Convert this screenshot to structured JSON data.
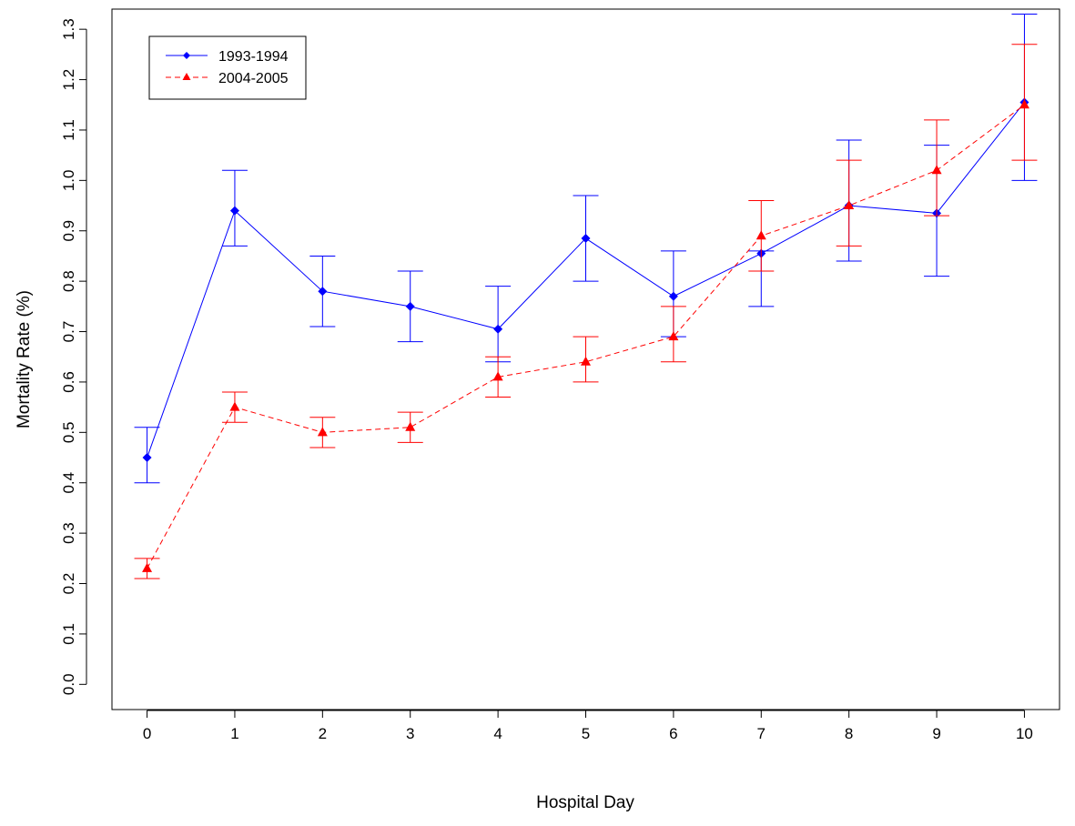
{
  "chart_data": {
    "type": "line",
    "title": "",
    "xlabel": "Hospital Day",
    "ylabel": "Mortality Rate (%)",
    "x": [
      0,
      1,
      2,
      3,
      4,
      5,
      6,
      7,
      8,
      9,
      10
    ],
    "xlim": [
      -0.4,
      10.4
    ],
    "ylim": [
      -0.05,
      1.34
    ],
    "xticks": [
      0,
      1,
      2,
      3,
      4,
      5,
      6,
      7,
      8,
      9,
      10
    ],
    "yticks": [
      0.0,
      0.1,
      0.2,
      0.3,
      0.4,
      0.5,
      0.6,
      0.7,
      0.8,
      0.9,
      1.0,
      1.1,
      1.2,
      1.3
    ],
    "ytick_labels": [
      "0.0",
      "0.1",
      "0.2",
      "0.3",
      "0.4",
      "0.5",
      "0.6",
      "0.7",
      "0.8",
      "0.9",
      "1.0",
      "1.1",
      "1.2",
      "1.3"
    ],
    "grid": false,
    "legend_position": "top-left",
    "series": [
      {
        "name": "1993-1994",
        "color": "#0000ff",
        "line_style": "solid",
        "marker": "diamond",
        "values": [
          0.45,
          0.94,
          0.78,
          0.75,
          0.705,
          0.885,
          0.77,
          0.855,
          0.95,
          0.935,
          1.155
        ],
        "lower": [
          0.4,
          0.87,
          0.71,
          0.68,
          0.64,
          0.8,
          0.69,
          0.75,
          0.84,
          0.81,
          1.0
        ],
        "upper": [
          0.51,
          1.02,
          0.85,
          0.82,
          0.79,
          0.97,
          0.86,
          0.86,
          1.08,
          1.07,
          1.33
        ]
      },
      {
        "name": "2004-2005",
        "color": "#ff0000",
        "line_style": "dashed",
        "marker": "triangle",
        "values": [
          0.23,
          0.55,
          0.5,
          0.51,
          0.61,
          0.64,
          0.69,
          0.89,
          0.95,
          1.02,
          1.15
        ],
        "lower": [
          0.21,
          0.52,
          0.47,
          0.48,
          0.57,
          0.6,
          0.64,
          0.82,
          0.87,
          0.93,
          1.04
        ],
        "upper": [
          0.25,
          0.58,
          0.53,
          0.54,
          0.65,
          0.69,
          0.75,
          0.96,
          1.04,
          1.12,
          1.27
        ]
      }
    ]
  }
}
